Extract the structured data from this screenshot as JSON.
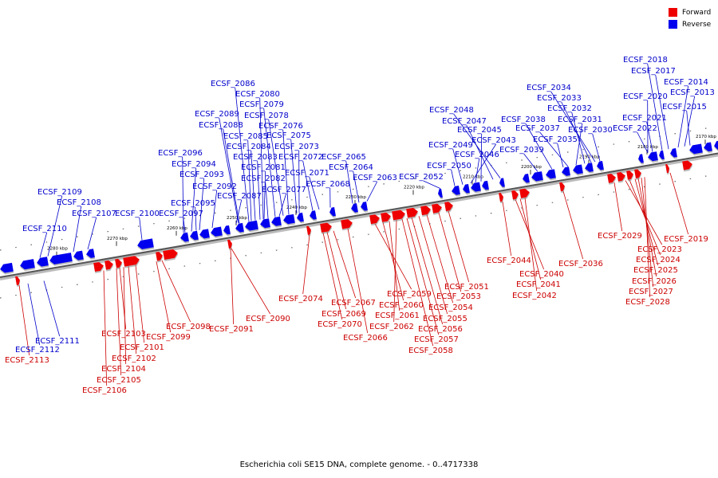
{
  "caption": "Escherichia coli SE15 DNA, complete genome. - 0..4717338",
  "legend": [
    {
      "label": "Forward",
      "color": "#ee0000"
    },
    {
      "label": "Reverse",
      "color": "#0000ee"
    }
  ],
  "colors": {
    "forward": "#ee0000",
    "reverse": "#0000ee",
    "axis": "#888888"
  },
  "ticks": [
    "2170 kbp",
    "2180 kbp",
    "2190 kbp",
    "2200 kbp",
    "2210 kbp",
    "2220 kbp",
    "2230 kbp",
    "2240 kbp",
    "2250 kbp",
    "2260 kbp",
    "2270 kbp",
    "2280 kbp"
  ],
  "reverse_genes": [
    "ECSF_2018",
    "ECSF_2017",
    "ECSF_2014",
    "ECSF_2013",
    "ECSF_2015",
    "ECSF_2020",
    "ECSF_2021",
    "ECSF_2022",
    "ECSF_2034",
    "ECSF_2033",
    "ECSF_2032",
    "ECSF_2038",
    "ECSF_2031",
    "ECSF_2037",
    "ECSF_2030",
    "ECSF_2035",
    "ECSF_2039",
    "ECSF_2048",
    "ECSF_2047",
    "ECSF_2045",
    "ECSF_2043",
    "ECSF_2049",
    "ECSF_2046",
    "ECSF_2050",
    "ECSF_2052",
    "ECSF_2086",
    "ECSF_2080",
    "ECSF_2079",
    "ECSF_2089",
    "ECSF_2078",
    "ECSF_2088",
    "ECSF_2076",
    "ECSF_2085",
    "ECSF_2075",
    "ECSF_2084",
    "ECSF_2073",
    "ECSF_2083",
    "ECSF_2072",
    "ECSF_2065",
    "ECSF_2081",
    "ECSF_2064",
    "ECSF_2082",
    "ECSF_2071",
    "ECSF_2063",
    "ECSF_2068",
    "ECSF_2077",
    "ECSF_2087",
    "ECSF_2096",
    "ECSF_2094",
    "ECSF_2093",
    "ECSF_2092",
    "ECSF_2095",
    "ECSF_2097",
    "ECSF_2109",
    "ECSF_2108",
    "ECSF_2107",
    "ECSF_2100",
    "ECSF_2110",
    "ECSF_2111",
    "ECSF_2112"
  ],
  "forward_genes": [
    "ECSF_2019",
    "ECSF_2029",
    "ECSF_2023",
    "ECSF_2024",
    "ECSF_2025",
    "ECSF_2026",
    "ECSF_2027",
    "ECSF_2028",
    "ECSF_2044",
    "ECSF_2036",
    "ECSF_2040",
    "ECSF_2041",
    "ECSF_2042",
    "ECSF_2051",
    "ECSF_2053",
    "ECSF_2059",
    "ECSF_2054",
    "ECSF_2060",
    "ECSF_2055",
    "ECSF_2061",
    "ECSF_2056",
    "ECSF_2062",
    "ECSF_2057",
    "ECSF_2058",
    "ECSF_2074",
    "ECSF_2067",
    "ECSF_2069",
    "ECSF_2070",
    "ECSF_2066",
    "ECSF_2090",
    "ECSF_2098",
    "ECSF_2091",
    "ECSF_2099",
    "ECSF_2103",
    "ECSF_2101",
    "ECSF_2102",
    "ECSF_2104",
    "ECSF_2105",
    "ECSF_2106",
    "ECSF_2113"
  ]
}
